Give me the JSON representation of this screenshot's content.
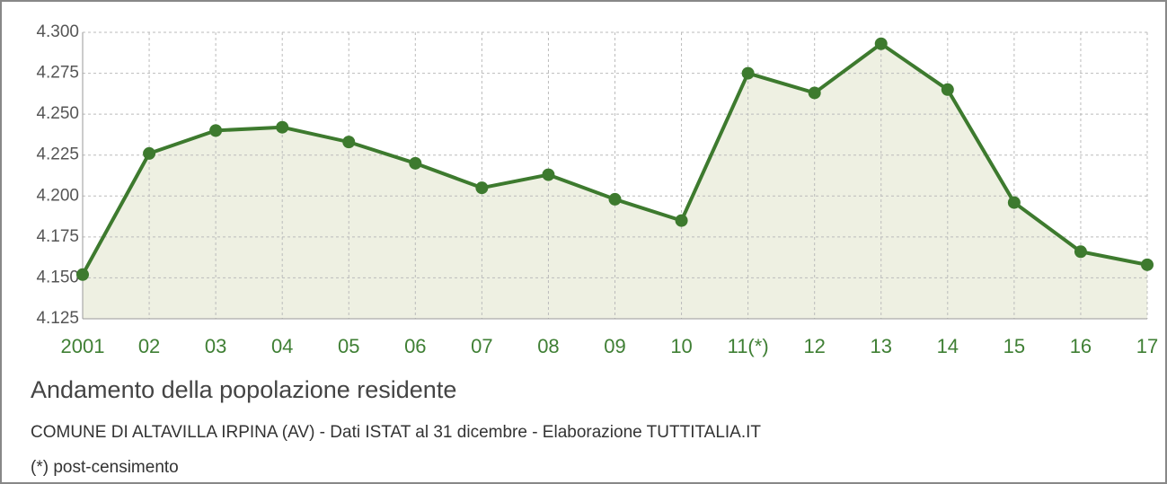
{
  "chart_data": {
    "type": "line",
    "title": "Andamento della popolazione residente",
    "subtitle": "COMUNE DI ALTAVILLA IRPINA (AV) - Dati ISTAT al 31 dicembre - Elaborazione TUTTITALIA.IT",
    "note": "(*) post-censimento",
    "categories": [
      "2001",
      "02",
      "03",
      "04",
      "05",
      "06",
      "07",
      "08",
      "09",
      "10",
      "11(*)",
      "12",
      "13",
      "14",
      "15",
      "16",
      "17"
    ],
    "values": [
      4152,
      4226,
      4240,
      4242,
      4233,
      4220,
      4205,
      4213,
      4198,
      4185,
      4275,
      4263,
      4293,
      4265,
      4196,
      4166,
      4158
    ],
    "color": "#3d7a2e",
    "fill_color": "#eef0e2",
    "ylim": [
      4125,
      4300
    ],
    "yticks": [
      {
        "value": 4125,
        "label": "4.125"
      },
      {
        "value": 4150,
        "label": "4.150"
      },
      {
        "value": 4175,
        "label": "4.175"
      },
      {
        "value": 4200,
        "label": "4.200"
      },
      {
        "value": 4225,
        "label": "4.225"
      },
      {
        "value": 4250,
        "label": "4.250"
      },
      {
        "value": 4275,
        "label": "4.275"
      },
      {
        "value": 4300,
        "label": "4.300"
      }
    ],
    "grid": true
  }
}
